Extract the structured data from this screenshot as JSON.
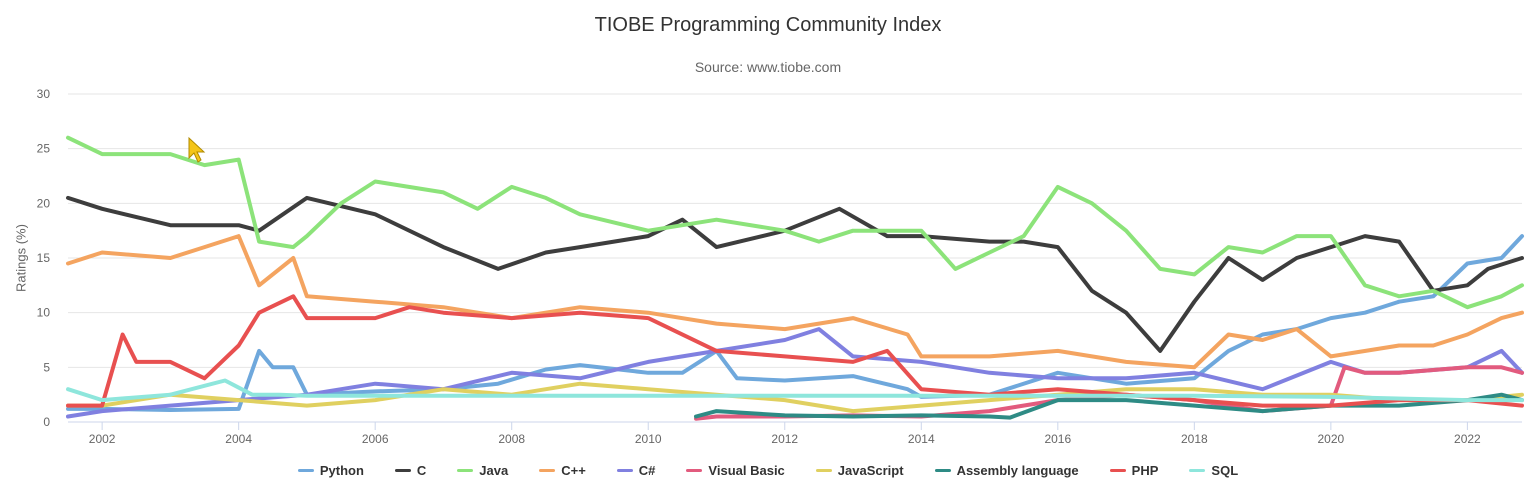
{
  "chart_data": {
    "type": "line",
    "title": "TIOBE Programming Community Index",
    "subtitle": "Source: www.tiobe.com",
    "ylabel": "Ratings (%)",
    "xlabel": "",
    "xlim": [
      2001.5,
      2022.8
    ],
    "ylim": [
      0,
      30
    ],
    "x_ticks": [
      "2002",
      "2004",
      "2006",
      "2008",
      "2010",
      "2012",
      "2014",
      "2016",
      "2018",
      "2020",
      "2022"
    ],
    "y_ticks": [
      "0",
      "5",
      "10",
      "15",
      "20",
      "25",
      "30"
    ],
    "grid": "horizontal",
    "legend_position": "bottom",
    "series": [
      {
        "name": "Python",
        "color": "#6fa8dc",
        "x": [
          2001.5,
          2002,
          2003,
          2004,
          2004.3,
          2004.5,
          2004.8,
          2005,
          2006,
          2007,
          2007.8,
          2008.5,
          2009,
          2010,
          2010.5,
          2011,
          2011.3,
          2012,
          2013,
          2013.8,
          2014,
          2015,
          2016,
          2017,
          2018,
          2018.5,
          2019,
          2019.5,
          2020,
          2020.5,
          2021,
          2021.5,
          2022,
          2022.5,
          2022.8
        ],
        "y": [
          1.2,
          1.2,
          1.1,
          1.2,
          6.5,
          5.0,
          5.0,
          2.5,
          2.8,
          3.0,
          3.5,
          4.8,
          5.2,
          4.5,
          4.5,
          6.5,
          4.0,
          3.8,
          4.2,
          3.0,
          2.3,
          2.5,
          4.5,
          3.5,
          4.0,
          6.5,
          8.0,
          8.5,
          9.5,
          10.0,
          11.0,
          11.5,
          14.5,
          15.0,
          17.0
        ]
      },
      {
        "name": "C",
        "color": "#3d3d3d",
        "x": [
          2001.5,
          2002,
          2003,
          2004,
          2004.3,
          2005,
          2006,
          2007,
          2007.8,
          2008.5,
          2009,
          2010,
          2010.5,
          2011,
          2012,
          2012.8,
          2013.5,
          2014,
          2015,
          2015.5,
          2016,
          2016.5,
          2017,
          2017.5,
          2018,
          2018.5,
          2019,
          2019.5,
          2020,
          2020.5,
          2021,
          2021.5,
          2022,
          2022.3,
          2022.8
        ],
        "y": [
          20.5,
          19.5,
          18.0,
          18.0,
          17.5,
          20.5,
          19.0,
          16.0,
          14.0,
          15.5,
          16.0,
          17.0,
          18.5,
          16.0,
          17.5,
          19.5,
          17.0,
          17.0,
          16.5,
          16.5,
          16.0,
          12.0,
          10.0,
          6.5,
          11.0,
          15.0,
          13.0,
          15.0,
          16.0,
          17.0,
          16.5,
          12.0,
          12.5,
          14.0,
          15.0
        ]
      },
      {
        "name": "Java",
        "color": "#8ce37a",
        "x": [
          2001.5,
          2002,
          2003,
          2003.5,
          2004,
          2004.3,
          2004.8,
          2005,
          2005.5,
          2006,
          2007,
          2007.5,
          2008,
          2008.5,
          2009,
          2010,
          2011,
          2012,
          2012.5,
          2013,
          2014,
          2014.5,
          2015,
          2015.5,
          2016,
          2016.5,
          2017,
          2017.5,
          2018,
          2018.5,
          2019,
          2019.5,
          2020,
          2020.5,
          2021,
          2021.5,
          2022,
          2022.5,
          2022.8
        ],
        "y": [
          26.0,
          24.5,
          24.5,
          23.5,
          24.0,
          16.5,
          16.0,
          17.0,
          20.0,
          22.0,
          21.0,
          19.5,
          21.5,
          20.5,
          19.0,
          17.5,
          18.5,
          17.5,
          16.5,
          17.5,
          17.5,
          14.0,
          15.5,
          17.0,
          21.5,
          20.0,
          17.5,
          14.0,
          13.5,
          16.0,
          15.5,
          17.0,
          17.0,
          12.5,
          11.5,
          12.0,
          10.5,
          11.5,
          12.5
        ]
      },
      {
        "name": "C++",
        "color": "#f4a460",
        "x": [
          2001.5,
          2002,
          2003,
          2003.5,
          2004,
          2004.3,
          2004.8,
          2005,
          2006,
          2007,
          2008,
          2009,
          2010,
          2011,
          2012,
          2013,
          2013.8,
          2014,
          2015,
          2016,
          2017,
          2018,
          2018.5,
          2019,
          2019.5,
          2020,
          2021,
          2021.5,
          2022,
          2022.5,
          2022.8
        ],
        "y": [
          14.5,
          15.5,
          15.0,
          16.0,
          17.0,
          12.5,
          15.0,
          11.5,
          11.0,
          10.5,
          9.5,
          10.5,
          10.0,
          9.0,
          8.5,
          9.5,
          8.0,
          6.0,
          6.0,
          6.5,
          5.5,
          5.0,
          8.0,
          7.5,
          8.5,
          6.0,
          7.0,
          7.0,
          8.0,
          9.5,
          10.0
        ]
      },
      {
        "name": "C#",
        "color": "#8080e0",
        "x": [
          2001.5,
          2002,
          2003,
          2004,
          2005,
          2006,
          2007,
          2008,
          2009,
          2010,
          2011,
          2012,
          2012.5,
          2013,
          2014,
          2015,
          2016,
          2017,
          2018,
          2019,
          2020,
          2020.5,
          2021,
          2022,
          2022.5,
          2022.8
        ],
        "y": [
          0.5,
          1.0,
          1.5,
          2.0,
          2.5,
          3.5,
          3.0,
          4.5,
          4.0,
          5.5,
          6.5,
          7.5,
          8.5,
          6.0,
          5.5,
          4.5,
          4.0,
          4.0,
          4.5,
          3.0,
          5.5,
          4.5,
          4.5,
          5.0,
          6.5,
          4.5
        ]
      },
      {
        "name": "Visual Basic",
        "color": "#e25b7e",
        "x": [
          2010.7,
          2011,
          2012,
          2013,
          2014,
          2015,
          2016,
          2017,
          2018,
          2019,
          2020,
          2020.2,
          2020.5,
          2021,
          2022,
          2022.5,
          2022.8
        ],
        "y": [
          0.3,
          0.5,
          0.5,
          0.6,
          0.5,
          1.0,
          2.0,
          2.5,
          2.0,
          1.0,
          1.5,
          5.0,
          4.5,
          4.5,
          5.0,
          5.0,
          4.5
        ]
      },
      {
        "name": "JavaScript",
        "color": "#e0d060",
        "x": [
          2001.5,
          2002,
          2003,
          2004,
          2005,
          2006,
          2007,
          2008,
          2009,
          2010,
          2011,
          2012,
          2013,
          2014,
          2015,
          2016,
          2017,
          2018,
          2019,
          2020,
          2021,
          2022,
          2022.8
        ],
        "y": [
          1.5,
          1.5,
          2.5,
          2.0,
          1.5,
          2.0,
          3.0,
          2.5,
          3.5,
          3.0,
          2.5,
          2.0,
          1.0,
          1.5,
          2.0,
          2.5,
          3.0,
          3.0,
          2.5,
          2.5,
          2.0,
          2.0,
          2.5
        ]
      },
      {
        "name": "Assembly language",
        "color": "#2e8b85",
        "x": [
          2010.7,
          2011,
          2012,
          2013,
          2014,
          2015,
          2015.3,
          2016,
          2017,
          2018,
          2019,
          2020,
          2021,
          2022,
          2022.5,
          2022.8
        ],
        "y": [
          0.5,
          1.0,
          0.6,
          0.5,
          0.6,
          0.5,
          0.4,
          2.0,
          2.0,
          1.5,
          1.0,
          1.5,
          1.5,
          2.0,
          2.5,
          2.0
        ]
      },
      {
        "name": "PHP",
        "color": "#e85050",
        "x": [
          2001.5,
          2002,
          2002.3,
          2002.5,
          2003,
          2003.5,
          2004,
          2004.3,
          2004.8,
          2005,
          2006,
          2006.5,
          2007,
          2008,
          2009,
          2010,
          2011,
          2012,
          2013,
          2013.5,
          2014,
          2015,
          2016,
          2017,
          2018,
          2019,
          2020,
          2021,
          2022,
          2022.8
        ],
        "y": [
          1.5,
          1.5,
          8.0,
          5.5,
          5.5,
          4.0,
          7.0,
          10.0,
          11.5,
          9.5,
          9.5,
          10.5,
          10.0,
          9.5,
          10.0,
          9.5,
          6.5,
          6.0,
          5.5,
          6.5,
          3.0,
          2.5,
          3.0,
          2.5,
          2.0,
          1.5,
          1.5,
          2.0,
          2.0,
          1.5
        ]
      },
      {
        "name": "SQL",
        "color": "#8ee6dc",
        "x": [
          2001.5,
          2002,
          2003,
          2003.8,
          2004.2,
          2004.6,
          2005,
          2008,
          2010,
          2012,
          2014,
          2016,
          2018,
          2020,
          2022,
          2022.8
        ],
        "y": [
          3.0,
          2.0,
          2.5,
          3.8,
          2.5,
          2.5,
          2.4,
          2.4,
          2.4,
          2.4,
          2.4,
          2.4,
          2.4,
          2.3,
          2.0,
          2.0
        ]
      }
    ]
  },
  "cursor_icon": "pointer-arrow-icon"
}
